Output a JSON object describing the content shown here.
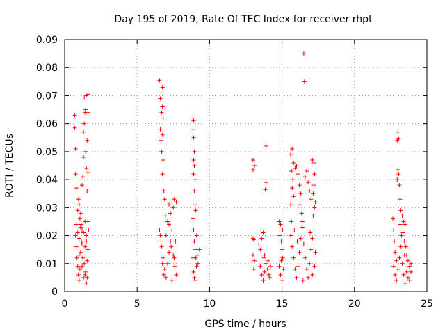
{
  "chart_data": {
    "type": "scatter",
    "title": "Day 195 of 2019, Rate Of TEC Index for receiver rhpt",
    "xlabel": "GPS time / hours",
    "ylabel": "ROTI / TECUs",
    "xlim": [
      0,
      25
    ],
    "ylim": [
      0,
      0.09
    ],
    "xticks": [
      "0",
      "5",
      "10",
      "15",
      "20",
      "25"
    ],
    "yticks": [
      "0",
      "0.01",
      "0.02",
      "0.03",
      "0.04",
      "0.05",
      "0.06",
      "0.07",
      "0.08",
      "0.09"
    ],
    "grid": true,
    "marker": "+",
    "color": "#ff0000",
    "series": [
      {
        "name": "ROTI",
        "points": [
          [
            0.7,
            0.063
          ],
          [
            0.7,
            0.0585
          ],
          [
            0.75,
            0.051
          ],
          [
            0.75,
            0.042
          ],
          [
            0.8,
            0.037
          ],
          [
            0.9,
            0.029
          ],
          [
            0.95,
            0.033
          ],
          [
            1.0,
            0.031
          ],
          [
            1.05,
            0.026
          ],
          [
            1.1,
            0.028
          ],
          [
            1.15,
            0.024
          ],
          [
            1.2,
            0.038
          ],
          [
            1.25,
            0.041
          ],
          [
            1.3,
            0.048
          ],
          [
            1.3,
            0.057
          ],
          [
            1.35,
            0.06
          ],
          [
            1.4,
            0.064
          ],
          [
            1.45,
            0.065
          ],
          [
            1.35,
            0.0695
          ],
          [
            1.5,
            0.07
          ],
          [
            1.6,
            0.0705
          ],
          [
            1.6,
            0.064
          ],
          [
            1.55,
            0.054
          ],
          [
            1.45,
            0.05
          ],
          [
            1.5,
            0.044
          ],
          [
            1.6,
            0.0425
          ],
          [
            1.55,
            0.036
          ],
          [
            1.6,
            0.025
          ],
          [
            1.65,
            0.022
          ],
          [
            1.5,
            0.02
          ],
          [
            0.75,
            0.02
          ],
          [
            0.8,
            0.016
          ],
          [
            0.85,
            0.012
          ],
          [
            0.9,
            0.009
          ],
          [
            0.95,
            0.006
          ],
          [
            1.0,
            0.004
          ],
          [
            1.05,
            0.008
          ],
          [
            1.1,
            0.014
          ],
          [
            1.15,
            0.018
          ],
          [
            1.2,
            0.022
          ],
          [
            1.25,
            0.012
          ],
          [
            1.3,
            0.005
          ],
          [
            1.35,
            0.01
          ],
          [
            1.4,
            0.016
          ],
          [
            1.45,
            0.007
          ],
          [
            1.5,
            0.003
          ],
          [
            1.55,
            0.011
          ],
          [
            1.6,
            0.015
          ],
          [
            0.8,
            0.024
          ],
          [
            0.9,
            0.021
          ],
          [
            1.0,
            0.019
          ],
          [
            1.1,
            0.023
          ],
          [
            1.2,
            0.017
          ],
          [
            1.3,
            0.021
          ],
          [
            1.4,
            0.025
          ],
          [
            1.5,
            0.018
          ],
          [
            1.0,
            0.013
          ],
          [
            1.2,
            0.009
          ],
          [
            1.4,
            0.006
          ],
          [
            1.55,
            0.005
          ],
          [
            6.55,
            0.0755
          ],
          [
            6.65,
            0.071
          ],
          [
            6.75,
            0.073
          ],
          [
            6.6,
            0.069
          ],
          [
            6.75,
            0.066
          ],
          [
            6.7,
            0.064
          ],
          [
            6.8,
            0.062
          ],
          [
            6.6,
            0.058
          ],
          [
            6.75,
            0.056
          ],
          [
            6.65,
            0.054
          ],
          [
            6.7,
            0.05
          ],
          [
            6.8,
            0.047
          ],
          [
            6.75,
            0.042
          ],
          [
            6.85,
            0.036
          ],
          [
            6.9,
            0.033
          ],
          [
            7.1,
            0.025
          ],
          [
            7.3,
            0.028
          ],
          [
            7.5,
            0.03
          ],
          [
            7.55,
            0.033
          ],
          [
            7.7,
            0.032
          ],
          [
            7.2,
            0.031
          ],
          [
            6.95,
            0.027
          ],
          [
            6.6,
            0.02
          ],
          [
            6.7,
            0.016
          ],
          [
            6.8,
            0.012
          ],
          [
            6.9,
            0.008
          ],
          [
            7.0,
            0.005
          ],
          [
            7.1,
            0.01
          ],
          [
            7.2,
            0.014
          ],
          [
            7.3,
            0.018
          ],
          [
            7.4,
            0.022
          ],
          [
            7.5,
            0.013
          ],
          [
            7.6,
            0.009
          ],
          [
            7.7,
            0.006
          ],
          [
            7.4,
            0.004
          ],
          [
            6.55,
            0.022
          ],
          [
            6.65,
            0.018
          ],
          [
            6.75,
            0.01
          ],
          [
            6.85,
            0.006
          ],
          [
            7.0,
            0.02
          ],
          [
            7.2,
            0.024
          ],
          [
            7.35,
            0.016
          ],
          [
            7.55,
            0.012
          ],
          [
            7.65,
            0.018
          ],
          [
            8.85,
            0.062
          ],
          [
            8.9,
            0.061
          ],
          [
            8.85,
            0.058
          ],
          [
            8.9,
            0.055
          ],
          [
            8.95,
            0.05
          ],
          [
            8.9,
            0.047
          ],
          [
            8.95,
            0.045
          ],
          [
            8.9,
            0.042
          ],
          [
            9.0,
            0.04
          ],
          [
            8.95,
            0.036
          ],
          [
            9.0,
            0.031
          ],
          [
            9.05,
            0.029
          ],
          [
            8.85,
            0.026
          ],
          [
            8.9,
            0.022
          ],
          [
            8.95,
            0.018
          ],
          [
            9.0,
            0.015
          ],
          [
            9.05,
            0.012
          ],
          [
            9.1,
            0.009
          ],
          [
            8.9,
            0.007
          ],
          [
            8.95,
            0.005
          ],
          [
            9.0,
            0.004
          ],
          [
            9.15,
            0.013
          ],
          [
            9.3,
            0.015
          ],
          [
            9.2,
            0.01
          ],
          [
            9.1,
            0.02
          ],
          [
            8.85,
            0.012
          ],
          [
            13.0,
            0.047
          ],
          [
            13.0,
            0.0435
          ],
          [
            13.1,
            0.045
          ],
          [
            13.9,
            0.052
          ],
          [
            13.9,
            0.039
          ],
          [
            13.85,
            0.0365
          ],
          [
            13.0,
            0.019
          ],
          [
            13.05,
            0.0185
          ],
          [
            13.0,
            0.013
          ],
          [
            13.1,
            0.011
          ],
          [
            13.05,
            0.008
          ],
          [
            13.4,
            0.017
          ],
          [
            13.5,
            0.015
          ],
          [
            13.6,
            0.019
          ],
          [
            13.7,
            0.021
          ],
          [
            13.8,
            0.013
          ],
          [
            13.9,
            0.01
          ],
          [
            14.0,
            0.008
          ],
          [
            14.1,
            0.006
          ],
          [
            14.2,
            0.009
          ],
          [
            13.5,
            0.009
          ],
          [
            13.6,
            0.006
          ],
          [
            13.7,
            0.004
          ],
          [
            13.8,
            0.007
          ],
          [
            13.55,
            0.022
          ],
          [
            13.75,
            0.012
          ],
          [
            14.05,
            0.011
          ],
          [
            14.15,
            0.005
          ],
          [
            14.8,
            0.025
          ],
          [
            14.9,
            0.024
          ],
          [
            14.85,
            0.02
          ],
          [
            14.95,
            0.018
          ],
          [
            15.0,
            0.015
          ],
          [
            15.05,
            0.012
          ],
          [
            14.8,
            0.009
          ],
          [
            14.9,
            0.006
          ],
          [
            15.0,
            0.004
          ],
          [
            15.1,
            0.008
          ],
          [
            15.05,
            0.022
          ],
          [
            14.95,
            0.011
          ],
          [
            15.6,
            0.049
          ],
          [
            15.7,
            0.051
          ],
          [
            15.8,
            0.046
          ],
          [
            15.9,
            0.044
          ],
          [
            16.0,
            0.045
          ],
          [
            15.65,
            0.043
          ],
          [
            15.75,
            0.04
          ],
          [
            15.7,
            0.037
          ],
          [
            15.8,
            0.034
          ],
          [
            15.6,
            0.031
          ],
          [
            16.1,
            0.042
          ],
          [
            16.2,
            0.038
          ],
          [
            16.3,
            0.035
          ],
          [
            16.25,
            0.031
          ],
          [
            16.35,
            0.028
          ],
          [
            16.4,
            0.025
          ],
          [
            16.5,
            0.085
          ],
          [
            16.55,
            0.075
          ],
          [
            16.6,
            0.041
          ],
          [
            16.7,
            0.043
          ],
          [
            16.8,
            0.039
          ],
          [
            16.9,
            0.036
          ],
          [
            17.0,
            0.033
          ],
          [
            17.1,
            0.047
          ],
          [
            17.2,
            0.046
          ],
          [
            17.25,
            0.042
          ],
          [
            17.2,
            0.038
          ],
          [
            17.15,
            0.035
          ],
          [
            17.3,
            0.032
          ],
          [
            17.25,
            0.03
          ],
          [
            15.6,
            0.02
          ],
          [
            15.7,
            0.016
          ],
          [
            15.8,
            0.012
          ],
          [
            15.9,
            0.008
          ],
          [
            16.0,
            0.005
          ],
          [
            16.1,
            0.009
          ],
          [
            16.2,
            0.014
          ],
          [
            16.3,
            0.019
          ],
          [
            16.4,
            0.023
          ],
          [
            16.5,
            0.017
          ],
          [
            16.6,
            0.012
          ],
          [
            16.7,
            0.008
          ],
          [
            16.8,
            0.005
          ],
          [
            16.9,
            0.01
          ],
          [
            17.0,
            0.015
          ],
          [
            17.1,
            0.019
          ],
          [
            17.2,
            0.022
          ],
          [
            17.3,
            0.014
          ],
          [
            17.25,
            0.009
          ],
          [
            17.1,
            0.006
          ],
          [
            15.65,
            0.025
          ],
          [
            15.85,
            0.022
          ],
          [
            16.05,
            0.018
          ],
          [
            16.45,
            0.004
          ],
          [
            16.95,
            0.021
          ],
          [
            17.15,
            0.027
          ],
          [
            22.65,
            0.026
          ],
          [
            22.7,
            0.022
          ],
          [
            22.75,
            0.018
          ],
          [
            22.8,
            0.014
          ],
          [
            22.9,
            0.011
          ],
          [
            23.0,
            0.057
          ],
          [
            23.05,
            0.0545
          ],
          [
            22.95,
            0.054
          ],
          [
            23.0,
            0.0435
          ],
          [
            23.05,
            0.042
          ],
          [
            22.95,
            0.04
          ],
          [
            23.1,
            0.038
          ],
          [
            23.15,
            0.033
          ],
          [
            23.2,
            0.029
          ],
          [
            23.3,
            0.027
          ],
          [
            23.4,
            0.025
          ],
          [
            23.5,
            0.024
          ],
          [
            23.35,
            0.021
          ],
          [
            23.45,
            0.018
          ],
          [
            23.55,
            0.016
          ],
          [
            23.6,
            0.013
          ],
          [
            23.7,
            0.011
          ],
          [
            23.8,
            0.009
          ],
          [
            23.9,
            0.007
          ],
          [
            22.7,
            0.009
          ],
          [
            22.8,
            0.006
          ],
          [
            22.9,
            0.004
          ],
          [
            23.0,
            0.008
          ],
          [
            23.1,
            0.012
          ],
          [
            23.2,
            0.016
          ],
          [
            23.3,
            0.01
          ],
          [
            23.4,
            0.006
          ],
          [
            23.5,
            0.003
          ],
          [
            23.6,
            0.007
          ],
          [
            23.7,
            0.005
          ],
          [
            23.8,
            0.004
          ],
          [
            23.9,
            0.01
          ],
          [
            23.25,
            0.02
          ],
          [
            23.15,
            0.024
          ],
          [
            23.45,
            0.013
          ]
        ]
      }
    ]
  }
}
